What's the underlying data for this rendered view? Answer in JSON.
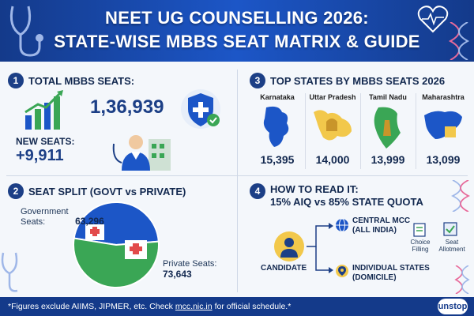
{
  "header": {
    "line1": "NEET UG COUNSELLING 2026:",
    "line2": "STATE-WISE MBBS SEAT MATRIX & GUIDE"
  },
  "section1": {
    "number": "1",
    "title": "TOTAL MBBS SEATS:",
    "total": "1,36,939",
    "new_label": "NEW SEATS:",
    "new_value": "+9,911"
  },
  "section2": {
    "number": "2",
    "title": "SEAT SPLIT (GOVT vs PRIVATE)",
    "govt_label": "Government Seats:",
    "govt_value": "63,296",
    "private_label": "Private Seats:",
    "private_value": "73,643"
  },
  "section3": {
    "number": "3",
    "title": "TOP STATES BY MBBS SEATS 2026",
    "states": [
      {
        "name": "Karnataka",
        "value": "15,395",
        "color": "#1c56c7"
      },
      {
        "name": "Uttar Pradesh",
        "value": "14,000",
        "color": "#f2c84b"
      },
      {
        "name": "Tamil Nadu",
        "value": "13,999",
        "color": "#3aa655"
      },
      {
        "name": "Maharashtra",
        "value": "13,099",
        "color": "#1c56c7"
      }
    ]
  },
  "section4": {
    "number": "4",
    "title_line1": "HOW TO READ IT:",
    "title_line2": "15% AIQ vs 85% STATE QUOTA",
    "candidate": "CANDIDATE",
    "central_line1": "CENTRAL MCC",
    "central_line2": "(ALL INDIA)",
    "states_line1": "INDIVIDUAL STATES",
    "states_line2": "(DOMICILE)",
    "choice_line1": "Choice",
    "choice_line2": "Filling",
    "seat_line1": "Seat",
    "seat_line2": "Allotment"
  },
  "chart_data": {
    "type": "pie",
    "categories": [
      "Government Seats",
      "Private Seats"
    ],
    "values": [
      63296,
      73643
    ],
    "colors": [
      "#1c56c7",
      "#3aa655"
    ]
  },
  "footer": {
    "text_before": "*Figures exclude AIIMS, JIPMER, etc. Check",
    "link": "mcc.nic.in",
    "text_after": "for official schedule.*",
    "logo": "unstop"
  }
}
